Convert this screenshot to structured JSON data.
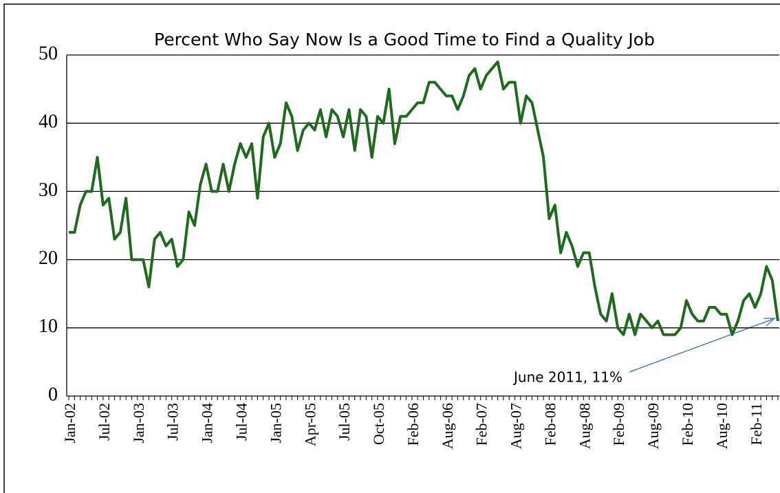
{
  "chart_data": {
    "type": "line",
    "title": "Percent Who Say Now Is a Good Time to Find a Quality Job",
    "categories": [
      "Jan-02",
      null,
      null,
      null,
      null,
      null,
      "Jul-02",
      null,
      null,
      null,
      null,
      null,
      "Jan-03",
      null,
      null,
      null,
      null,
      null,
      "Jul-03",
      null,
      null,
      null,
      null,
      null,
      "Jan-04",
      null,
      null,
      null,
      null,
      null,
      "Jul-04",
      null,
      null,
      null,
      null,
      null,
      "Jan-05",
      null,
      null,
      null,
      null,
      null,
      "Apr-05",
      null,
      null,
      null,
      null,
      null,
      "Jul-05",
      null,
      null,
      null,
      null,
      null,
      "Oct-05",
      null,
      null,
      null,
      null,
      null,
      "Feb-06",
      null,
      null,
      null,
      null,
      null,
      "Aug-06",
      null,
      null,
      null,
      null,
      null,
      "Feb-07",
      null,
      null,
      null,
      null,
      null,
      "Aug-07",
      null,
      null,
      null,
      null,
      null,
      "Feb-08",
      null,
      null,
      null,
      null,
      null,
      "Aug-08",
      null,
      null,
      null,
      null,
      null,
      "Feb-09",
      null,
      null,
      null,
      null,
      null,
      "Aug-09",
      null,
      null,
      null,
      null,
      null,
      "Feb-10",
      null,
      null,
      null,
      null,
      null,
      "Aug-10",
      null,
      null,
      null,
      null,
      null,
      "Feb-11",
      null,
      null,
      null,
      null
    ],
    "series": [
      {
        "color": "#1e6b1e",
        "values": [
          24,
          24,
          28,
          30,
          30,
          35,
          28,
          29,
          23,
          24,
          29,
          20,
          20,
          20,
          16,
          23,
          24,
          22,
          23,
          19,
          20,
          27,
          25,
          31,
          34,
          30,
          30,
          34,
          30,
          34,
          37,
          35,
          37,
          29,
          38,
          40,
          35,
          37,
          43,
          41,
          36,
          39,
          40,
          39,
          42,
          38,
          42,
          41,
          38,
          42,
          36,
          42,
          41,
          35,
          41,
          40,
          45,
          37,
          41,
          41,
          42,
          43,
          43,
          46,
          46,
          45,
          44,
          44,
          42,
          44,
          47,
          48,
          45,
          47,
          48,
          49,
          45,
          46,
          46,
          40,
          44,
          43,
          39,
          35,
          26,
          28,
          21,
          24,
          22,
          19,
          21,
          21,
          16,
          12,
          11,
          15,
          10,
          9,
          12,
          9,
          12,
          11,
          10,
          11,
          9,
          9,
          9,
          10,
          14,
          12,
          11,
          11,
          13,
          13,
          12,
          12,
          9,
          11,
          14,
          15,
          13,
          15,
          19,
          17,
          11
        ]
      }
    ],
    "ylim": [
      0,
      50
    ],
    "yticks": [
      0,
      10,
      20,
      30,
      40,
      50
    ],
    "grid": true,
    "annotation": "June 2011, 11%"
  }
}
